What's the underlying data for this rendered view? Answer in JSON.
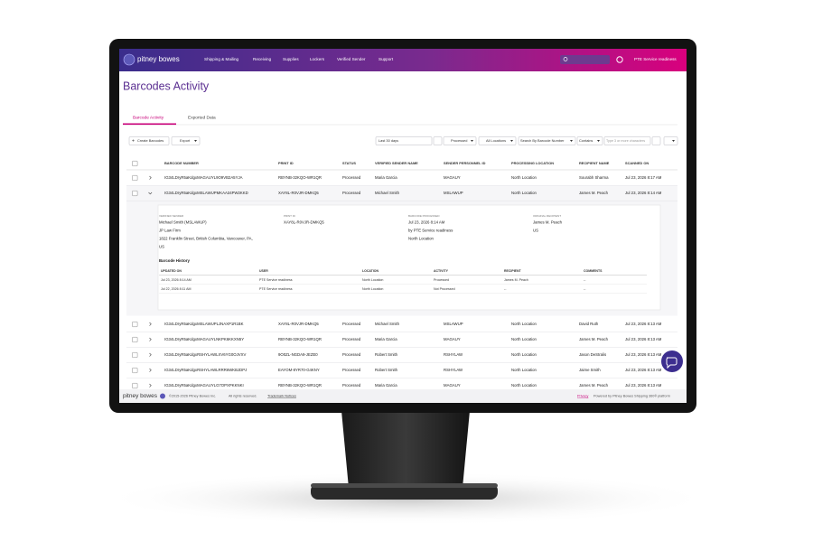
{
  "nav": {
    "logo": "pitney bowes",
    "items": [
      "Shipping & Mailing",
      "Receiving",
      "Supplies",
      "Lockers",
      "Verified Sender",
      "Support"
    ],
    "user": "PTE Service readiness"
  },
  "page": {
    "title": "Barcodes Activity",
    "tabs": [
      "Barcode Activity",
      "Exported Data"
    ]
  },
  "toolbar": {
    "create": "Create Barcodes",
    "export": "Export",
    "date_range": "Last 30 days",
    "status_filter": "Processed",
    "location_filter": "All Locations",
    "search_field": "Search By Barcode Number",
    "match": "Contains",
    "search_placeholder": "Type 3 or more characters"
  },
  "table": {
    "columns": [
      "BARCODE NUMBER",
      "PRINT ID",
      "STATUS",
      "VERIFIED SENDER NAME",
      "SENDER PERSONNEL ID",
      "PROCESSING LOCATION",
      "RECIPIENT NAME",
      "SCANNED ON"
    ],
    "rows": [
      [
        "IG34LDryR5aKdgxMAGAUYL9O9VB2A5YJA",
        "RBYNB-32KQO-WR1QR",
        "Processed",
        "Maria Garcia",
        "MAGAUY",
        "North Location",
        "Sourabh Sharma",
        "Jul 23, 2026 8:17 AM"
      ],
      [
        "IG34LDryR5aKdgxMSLAWUPMKAA34PW2KKD",
        "XAY8L-R0VJR-DMKQ5",
        "Processed",
        "Michael Smith",
        "MSLAWUP",
        "North Location",
        "James M. Peach",
        "Jul 23, 2026 8:14 AM"
      ],
      [
        "IG34LDryR5aKdgxMSLAWUPLJNAXP1R1BK",
        "XAY8L-R0VJR-DMKQ5",
        "Processed",
        "Michael Smith",
        "MSLAWUP",
        "North Location",
        "David Ruth",
        "Jul 23, 2026 8:13 AM"
      ],
      [
        "IG34LDryR5aKdgxMAGAUYLNKPK6KKXN5Y",
        "RBYNB-32KQO-WR1QR",
        "Processed",
        "Maria Garcia",
        "MAGAUY",
        "North Location",
        "James M. Peach",
        "Jul 23, 2026 8:13 AM"
      ],
      [
        "IG34LDryR5aKdgxRSHYLAWLXV6YG0OJVXV",
        "9O0ZL-NGDA9-JEZE0",
        "Processed",
        "Robert Smith",
        "RSHYLAW",
        "North Location",
        "Jason DeStralis",
        "Jul 23, 2026 8:13 AM"
      ],
      [
        "IG34LDryR5aKdgxRSHYLAWLRRR6WKBJDPJ",
        "EAYOM-8YR70-G4KNY",
        "Processed",
        "Robert Smith",
        "RSHYLAW",
        "North Location",
        "Jaime Smith",
        "Jul 23, 2026 8:13 AM"
      ],
      [
        "IG34LDryR5aKdgxMAGAUYLG7OPXPKKNKI",
        "RBYNB-32KQO-WR1QR",
        "Processed",
        "Maria Garcia",
        "MAGAUY",
        "North Location",
        "James M. Peach",
        "Jul 23, 2026 8:13 AM"
      ]
    ]
  },
  "details": [
    {
      "label": "VERIFIED SENDER",
      "lines": [
        "Michael Smith (MSLAWUP)",
        "JP Law Firm",
        "1822 Franklin Street, British Columbia, Vancouver, PA,",
        "US"
      ]
    },
    {
      "label": "PRINT ID",
      "lines": [
        "XAY8L-R0VJR-DMKQ5"
      ]
    },
    {
      "label": "BARCODE PROCESSED",
      "lines": [
        "Jul 23, 2026 8:14 AM",
        "by PTE Service readiness",
        "North Location"
      ]
    },
    {
      "label": "ORIGINAL RECIPIENT",
      "lines": [
        "James M. Peach",
        "US"
      ]
    }
  ],
  "history": {
    "title": "Barcode History",
    "columns": [
      "UPDATED ON",
      "USER",
      "LOCATION",
      "ACTIVITY",
      "RECIPIENT",
      "COMMENTS"
    ],
    "rows": [
      [
        "Jul 23, 2026 8:14 AM",
        "PTE Service readiness",
        "North Location",
        "Processed",
        "James M. Peach",
        "--"
      ],
      [
        "Jul 22, 2026 8:11 AM",
        "PTE Service readiness",
        "North Location",
        "Not Processed",
        "--",
        "--"
      ]
    ]
  },
  "footer": {
    "logo": "pitney bowes",
    "copyright": "©2015-2026 Pitney Bowes Inc.",
    "rights": "All rights reserved.",
    "trademark": "Trademark Notices",
    "privacy": "Privacy",
    "powered": "Powered by Pitney Bowes Shipping 360® platform"
  }
}
